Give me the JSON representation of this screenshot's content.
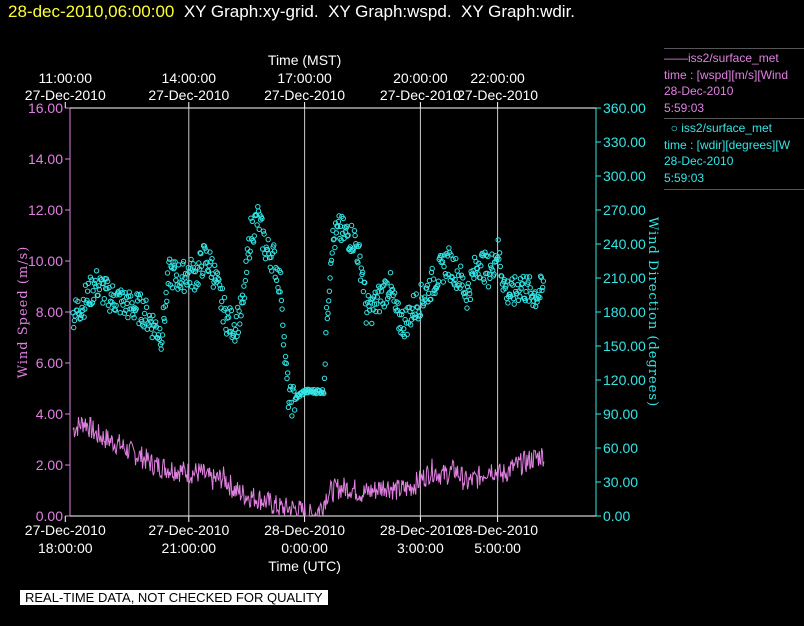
{
  "title": {
    "date": "28-dec-2010,06:00:00",
    "parts": [
      "XY Graph:xy-grid.",
      "XY Graph:wspd.",
      "XY Graph:wdir."
    ]
  },
  "legend": {
    "wspd": {
      "line1": "iss2/surface_met",
      "line2": "time : [wspd][m/s][Wind",
      "line3": "28-Dec-2010",
      "line4": "5:59:03"
    },
    "wdir": {
      "line1": "iss2/surface_met",
      "line2": "time : [wdir][degrees][W",
      "line3": "28-Dec-2010",
      "line4": "5:59:03"
    }
  },
  "quality_banner": "REAL-TIME DATA, NOT CHECKED FOR QUALITY",
  "colors": {
    "wspd": "#e080e0",
    "wdir": "#33e6e6",
    "date": "#ffff33",
    "grid": "#cccccc"
  },
  "chart_data": {
    "type": "line",
    "x_range_hours": [
      0,
      12.3
    ],
    "x_bottom": {
      "label": "Time (UTC)",
      "ticks": [
        {
          "h": -0.2,
          "line1": "27-Dec-2010",
          "line2": "18:00:00"
        },
        {
          "h": 3.0,
          "line1": "27-Dec-2010",
          "line2": "21:00:00"
        },
        {
          "h": 6.0,
          "line1": "28-Dec-2010",
          "line2": "0:00:00"
        },
        {
          "h": 9.0,
          "line1": "28-Dec-2010",
          "line2": "3:00:00"
        },
        {
          "h": 11.0,
          "line1": "28-Dec-2010",
          "line2": "5:00:00"
        }
      ]
    },
    "x_top": {
      "label": "Time (MST)",
      "ticks": [
        {
          "h": -0.2,
          "line1": "11:00:00",
          "line2": "27-Dec-2010"
        },
        {
          "h": 3.0,
          "line1": "14:00:00",
          "line2": "27-Dec-2010"
        },
        {
          "h": 6.0,
          "line1": "17:00:00",
          "line2": "27-Dec-2010"
        },
        {
          "h": 9.0,
          "line1": "20:00:00",
          "line2": "27-Dec-2010"
        },
        {
          "h": 11.0,
          "line1": "22:00:00",
          "line2": "27-Dec-2010"
        }
      ]
    },
    "grid_hours": [
      3.0,
      6.0,
      9.0,
      11.0
    ],
    "y_left": {
      "label": "Wind Speed (m/s)",
      "range": [
        0,
        16
      ],
      "ticks": [
        "0.00",
        "2.00",
        "4.00",
        "6.00",
        "8.00",
        "10.00",
        "12.00",
        "14.00",
        "16.00"
      ]
    },
    "y_right": {
      "label": "Wind Direction (degrees)",
      "range": [
        0,
        360
      ],
      "ticks": [
        "0.00",
        "30.00",
        "60.00",
        "90.00",
        "120.00",
        "150.00",
        "180.00",
        "210.00",
        "240.00",
        "270.00",
        "300.00",
        "330.00",
        "360.00"
      ]
    },
    "series": [
      {
        "name": "iss2/surface_met time : [wspd][m/s]",
        "axis": "left",
        "style": "line",
        "keys": [
          [
            0.0,
            3.4
          ],
          [
            0.3,
            3.7
          ],
          [
            0.6,
            3.2
          ],
          [
            0.9,
            3.0
          ],
          [
            1.2,
            2.8
          ],
          [
            1.5,
            2.5
          ],
          [
            1.8,
            2.3
          ],
          [
            2.1,
            2.0
          ],
          [
            2.4,
            1.9
          ],
          [
            2.7,
            1.8
          ],
          [
            3.0,
            1.7
          ],
          [
            3.3,
            1.7
          ],
          [
            3.6,
            1.4
          ],
          [
            3.9,
            1.5
          ],
          [
            4.2,
            1.0
          ],
          [
            4.5,
            0.8
          ],
          [
            4.8,
            0.7
          ],
          [
            5.1,
            0.5
          ],
          [
            5.4,
            0.3
          ],
          [
            5.7,
            0.3
          ],
          [
            6.0,
            0.15
          ],
          [
            6.2,
            0.0
          ],
          [
            6.45,
            0.4
          ],
          [
            6.6,
            0.9
          ],
          [
            6.9,
            1.1
          ],
          [
            7.2,
            1.1
          ],
          [
            7.5,
            0.9
          ],
          [
            7.8,
            1.0
          ],
          [
            8.1,
            1.2
          ],
          [
            8.4,
            1.0
          ],
          [
            8.7,
            1.1
          ],
          [
            9.0,
            1.4
          ],
          [
            9.3,
            1.8
          ],
          [
            9.6,
            1.6
          ],
          [
            9.9,
            1.8
          ],
          [
            10.2,
            1.3
          ],
          [
            10.5,
            1.5
          ],
          [
            10.8,
            1.9
          ],
          [
            11.1,
            1.6
          ],
          [
            11.4,
            1.9
          ],
          [
            11.7,
            2.1
          ],
          [
            12.0,
            2.3
          ],
          [
            12.2,
            2.4
          ]
        ],
        "noise": 0.45
      },
      {
        "name": "iss2/surface_met time : [wdir][degrees]",
        "axis": "right",
        "style": "circles",
        "keys": [
          [
            0.0,
            176
          ],
          [
            0.3,
            190
          ],
          [
            0.6,
            205
          ],
          [
            0.9,
            195
          ],
          [
            1.2,
            190
          ],
          [
            1.5,
            185
          ],
          [
            1.8,
            182
          ],
          [
            2.1,
            168
          ],
          [
            2.3,
            160
          ],
          [
            2.5,
            215
          ],
          [
            2.8,
            210
          ],
          [
            3.0,
            215
          ],
          [
            3.2,
            212
          ],
          [
            3.4,
            228
          ],
          [
            3.6,
            220
          ],
          [
            3.8,
            195
          ],
          [
            4.0,
            172
          ],
          [
            4.2,
            168
          ],
          [
            4.4,
            184
          ],
          [
            4.6,
            250
          ],
          [
            4.8,
            263
          ],
          [
            5.0,
            235
          ],
          [
            5.2,
            228
          ],
          [
            5.4,
            200
          ],
          [
            5.5,
            135
          ],
          [
            5.6,
            100
          ],
          [
            5.8,
            105
          ],
          [
            6.0,
            110
          ],
          [
            6.2,
            110
          ],
          [
            6.5,
            110
          ],
          [
            6.55,
            160
          ],
          [
            6.7,
            240
          ],
          [
            6.9,
            252
          ],
          [
            7.1,
            248
          ],
          [
            7.3,
            244
          ],
          [
            7.5,
            215
          ],
          [
            7.6,
            180
          ],
          [
            7.8,
            185
          ],
          [
            8.0,
            195
          ],
          [
            8.2,
            205
          ],
          [
            8.4,
            175
          ],
          [
            8.6,
            170
          ],
          [
            8.8,
            182
          ],
          [
            9.0,
            190
          ],
          [
            9.3,
            205
          ],
          [
            9.5,
            215
          ],
          [
            9.7,
            225
          ],
          [
            10.0,
            212
          ],
          [
            10.2,
            195
          ],
          [
            10.5,
            225
          ],
          [
            10.8,
            215
          ],
          [
            11.0,
            235
          ],
          [
            11.2,
            200
          ],
          [
            11.4,
            195
          ],
          [
            11.6,
            205
          ],
          [
            11.8,
            198
          ],
          [
            12.0,
            195
          ],
          [
            12.2,
            200
          ]
        ],
        "noise": 14
      }
    ]
  }
}
